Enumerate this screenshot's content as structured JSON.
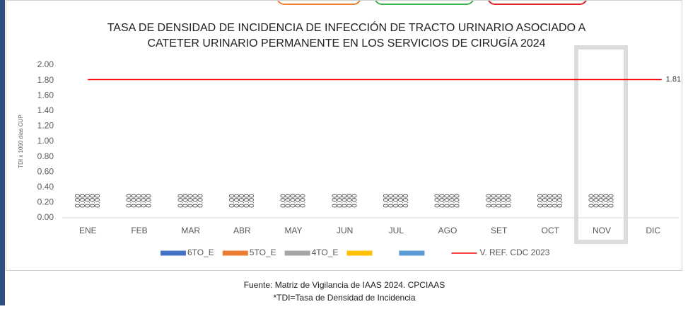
{
  "chart_data": {
    "type": "bar",
    "title": [
      "TASA DE DENSIDAD DE INCIDENCIA DE INFECCIÓN DE TRACTO URINARIO ASOCIADO A",
      "CATETER URINARIO PERMANENTE EN LOS SERVICIOS DE CIRUGÍA 2024"
    ],
    "y_label": "TDI x 1000 días CUP",
    "categories": [
      "ENE",
      "FEB",
      "MAR",
      "ABR",
      "MAY",
      "JUN",
      "JUL",
      "AGO",
      "SET",
      "OCT",
      "NOV",
      "DIC"
    ],
    "series": [
      {
        "name": "6TO_E",
        "color": "#4472c4",
        "values": [
          0,
          0,
          0,
          0,
          0,
          0,
          0,
          0,
          0,
          0,
          0,
          null
        ],
        "value_labels": [
          "0.00",
          "0.00",
          "0.00",
          "0.00",
          "0.00",
          "0.00",
          "0.00",
          "0.00",
          "0.00",
          "0.00",
          "0.00",
          null
        ]
      },
      {
        "name": "5TO_E",
        "color": "#ed7d31",
        "values": [
          0,
          0,
          0,
          0,
          0,
          0,
          0,
          0,
          0,
          0,
          0,
          null
        ],
        "value_labels": [
          "0.00",
          "0.00",
          "0.00",
          "0.00",
          "0.00",
          "0.00",
          "0.00",
          "0.00",
          "0.00",
          "0.00",
          "0.00",
          null
        ]
      },
      {
        "name": "4TO_E",
        "color": "#a5a5a5",
        "values": [
          0,
          0,
          0,
          0,
          0,
          0,
          0,
          0,
          0,
          0,
          0,
          null
        ],
        "value_labels": [
          "0.00",
          "0.00",
          "0.00",
          "0.00",
          "0.00",
          "0.00",
          "0.00",
          "0.00",
          "0.00",
          "0.00",
          "0.00",
          null
        ]
      },
      {
        "color": "#ffc000",
        "values": [
          0,
          0,
          0,
          0,
          0,
          0,
          0,
          0,
          0,
          0,
          0,
          null
        ],
        "value_labels": [
          "0.00",
          "0.00",
          "0.00",
          "0.00",
          "0.00",
          "0.00",
          "0.00",
          "0.00",
          "0.00",
          "0.00",
          "0.00",
          null
        ]
      },
      {
        "color": "#5b9bd5",
        "values": [
          0,
          0,
          0,
          0,
          0,
          0,
          0,
          0,
          0,
          0,
          0,
          null
        ],
        "value_labels": [
          "0.00",
          "0.00",
          "0.00",
          "0.00",
          "0.00",
          "0.00",
          "0.00",
          "0.00",
          "0.00",
          "0.00",
          "0.00",
          null
        ]
      }
    ],
    "reference": {
      "name": "V. REF. CDC 2023",
      "color": "#ff0000",
      "value": 1.81
    },
    "ylim": [
      0,
      2
    ],
    "yticks": [
      {
        "value": 0,
        "label": "0.00"
      },
      {
        "value": 0.2,
        "label": "0.20"
      },
      {
        "value": 0.4,
        "label": "0.40"
      },
      {
        "value": 0.6,
        "label": "0.60"
      },
      {
        "value": 0.8,
        "label": "0.80"
      },
      {
        "value": 1,
        "label": "1.00"
      },
      {
        "value": 1.2,
        "label": "1.20"
      },
      {
        "value": 1.4,
        "label": "1.40"
      },
      {
        "value": 1.6,
        "label": "1.60"
      },
      {
        "value": 1.8,
        "label": "1.80"
      },
      {
        "value": 2,
        "label": "2.00"
      }
    ],
    "grid": false
  },
  "footer": [
    "Fuente: Matriz de Vigilancia de IAAS 2024. CPCIAAS",
    "*TDI=Tasa de Densidad de Incidencia"
  ]
}
